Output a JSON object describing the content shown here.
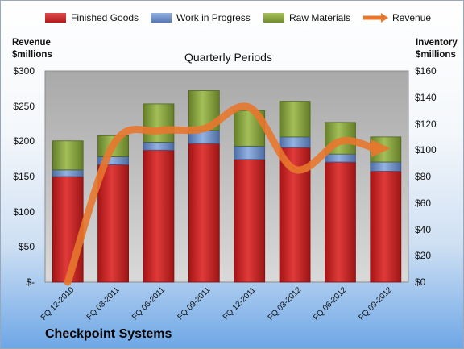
{
  "legend": {
    "finished": "Finished Goods",
    "wip": "Work in Progress",
    "raw": "Raw Materials",
    "revenue": "Revenue"
  },
  "left_axis_title": [
    "Revenue",
    "$millions"
  ],
  "right_axis_title": [
    "Inventory",
    "$millions"
  ],
  "subtitle": "Quarterly Periods",
  "company": "Checkpoint Systems",
  "colors": {
    "finished": "#cc2222",
    "wip": "#6b8fc9",
    "raw": "#8aa83c",
    "revenue": "#e8772e",
    "plot_bg": "#bdbdbd"
  },
  "chart_data": {
    "type": "bar",
    "stacked": true,
    "categories": [
      "FQ 12-2010",
      "FQ 03-2011",
      "FQ 06-2011",
      "FQ 09-2011",
      "FQ 12-2011",
      "FQ 03-2012",
      "FQ 06-2012",
      "FQ 09-2012"
    ],
    "series": [
      {
        "name": "Finished Goods",
        "axis": "right",
        "values": [
          80,
          89,
          100,
          105,
          93,
          102,
          91,
          84
        ]
      },
      {
        "name": "Work in Progress",
        "axis": "right",
        "values": [
          5,
          6,
          6,
          10,
          10,
          8,
          6,
          7
        ]
      },
      {
        "name": "Raw Materials",
        "axis": "right",
        "values": [
          22,
          16,
          29,
          30,
          27,
          27,
          24,
          19
        ]
      },
      {
        "name": "Revenue",
        "type": "line",
        "axis": "left",
        "values": [
          0,
          195,
          215,
          218,
          248,
          160,
          200,
          190
        ]
      }
    ],
    "left_axis": {
      "title": "Revenue $millions",
      "ylim": [
        0,
        300
      ],
      "ticks": [
        0,
        50,
        100,
        150,
        200,
        250,
        300
      ],
      "tick_labels": [
        "$-",
        "$50",
        "$100",
        "$150",
        "$200",
        "$250",
        "$300"
      ]
    },
    "right_axis": {
      "title": "Inventory $millions",
      "ylim": [
        0,
        160
      ],
      "ticks": [
        0,
        20,
        40,
        60,
        80,
        100,
        120,
        140,
        160
      ],
      "tick_labels": [
        "$0",
        "$20",
        "$40",
        "$60",
        "$80",
        "$100",
        "$120",
        "$140",
        "$160"
      ]
    },
    "xlabel": "Quarterly Periods",
    "legend_position": "top",
    "grid": false
  }
}
